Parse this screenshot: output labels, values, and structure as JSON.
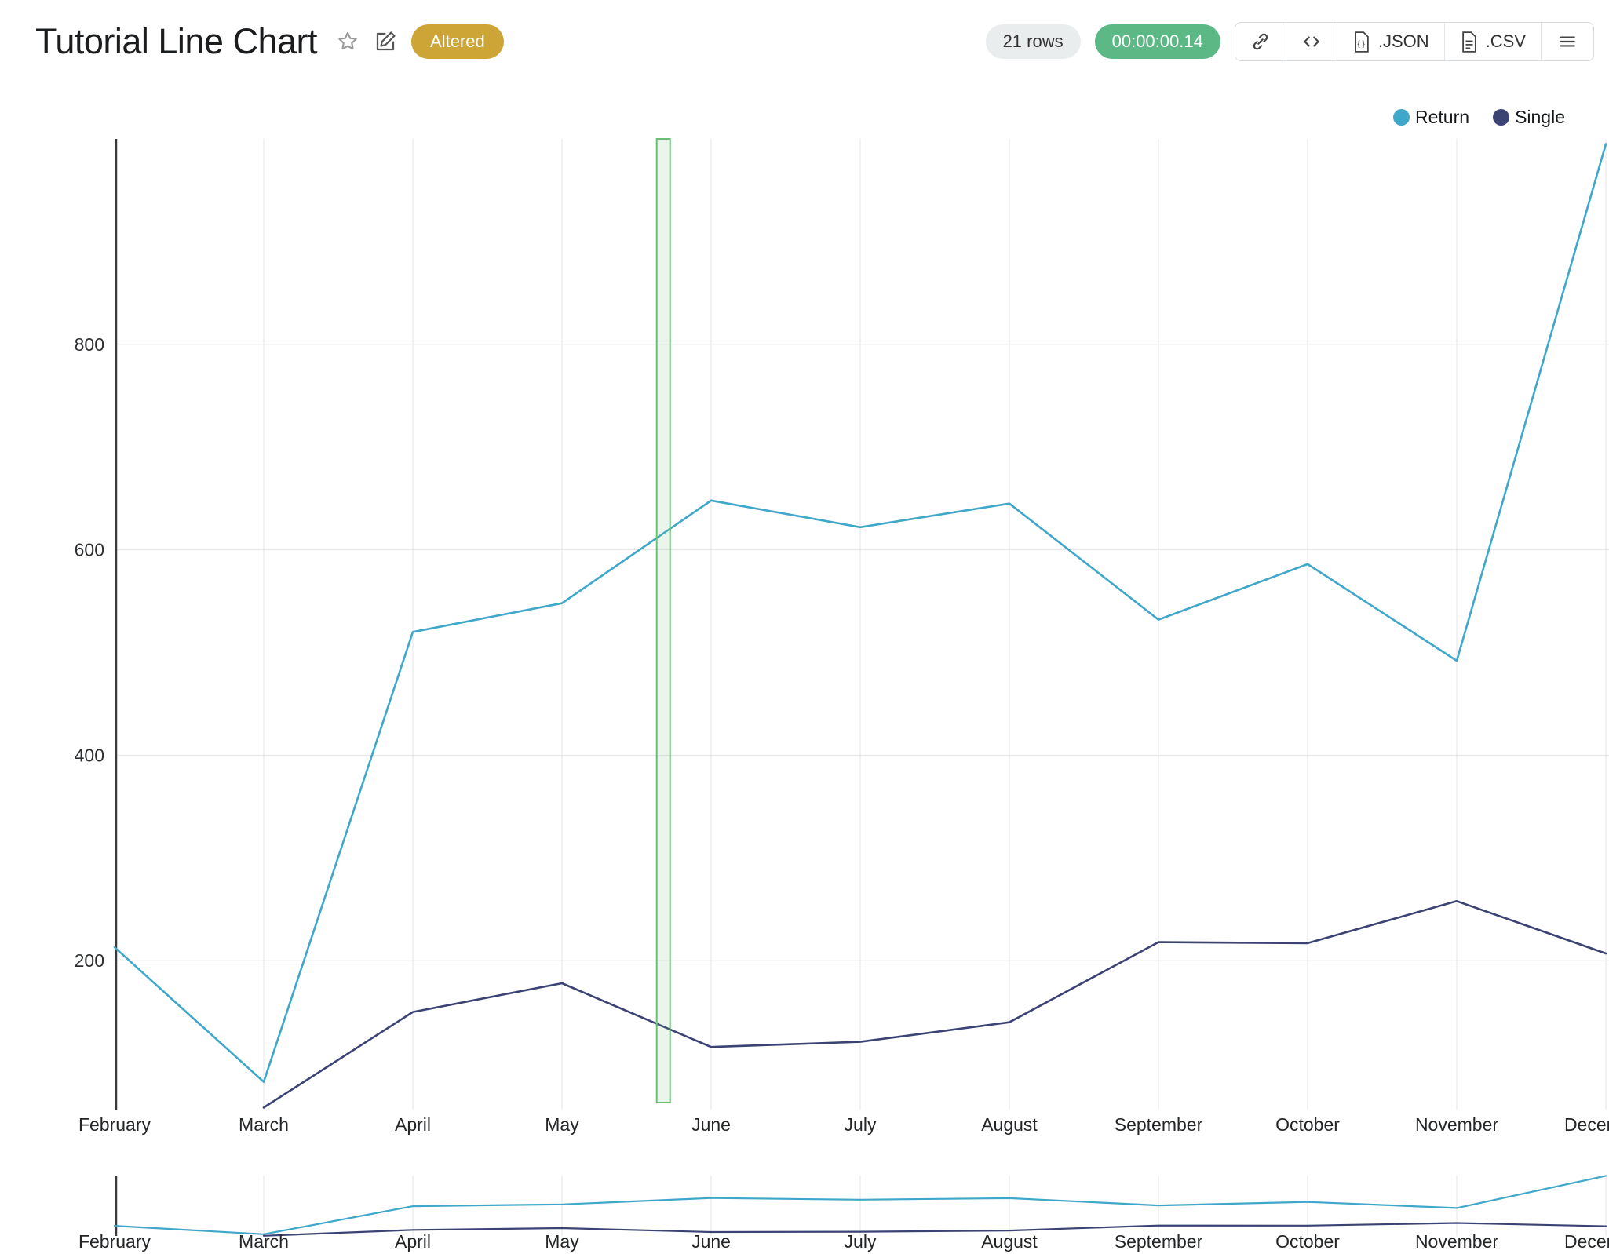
{
  "header": {
    "title": "Tutorial Line Chart",
    "badge": "Altered",
    "rows_label": "21 rows",
    "timer": "00:00:00.14",
    "toolbar": {
      "json_label": ".JSON",
      "csv_label": ".CSV"
    }
  },
  "icons": {
    "favorite": "star-outline",
    "edit": "pencil-square",
    "link": "chain-link",
    "code": "angle-brackets",
    "json_file": "document-braces",
    "csv_file": "document-lines",
    "menu": "hamburger"
  },
  "colors": {
    "return_series": "#3fa7c9",
    "single_series": "#3b4274",
    "badge_bg": "#cda436",
    "timer_bg": "#5cb885",
    "rows_bg": "#e9edee",
    "grid": "#e5e6e8",
    "axis": "#3a3b3d",
    "band_fill": "rgba(122,196,134,0.16)",
    "band_border": "#6abf74"
  },
  "chart_data": {
    "type": "line",
    "title": "Tutorial Line Chart",
    "categories": [
      "February",
      "March",
      "April",
      "May",
      "June",
      "July",
      "August",
      "September",
      "October",
      "November",
      "December"
    ],
    "last_label_clipped": true,
    "series": [
      {
        "name": "Return",
        "color": "#3fa7c9",
        "values": [
          213,
          82,
          520,
          548,
          648,
          622,
          645,
          532,
          586,
          492,
          995
        ]
      },
      {
        "name": "Single",
        "color": "#3b4274",
        "values": [
          null,
          57,
          150,
          178,
          116,
          121,
          140,
          218,
          217,
          258,
          207
        ]
      }
    ],
    "y_ticks": [
      200,
      400,
      600,
      800
    ],
    "y_range": [
      55,
      1000
    ],
    "grid": true,
    "legend_position": "top-right",
    "has_navigator": true,
    "selection_band": {
      "index": 3.68,
      "width": 17
    }
  }
}
